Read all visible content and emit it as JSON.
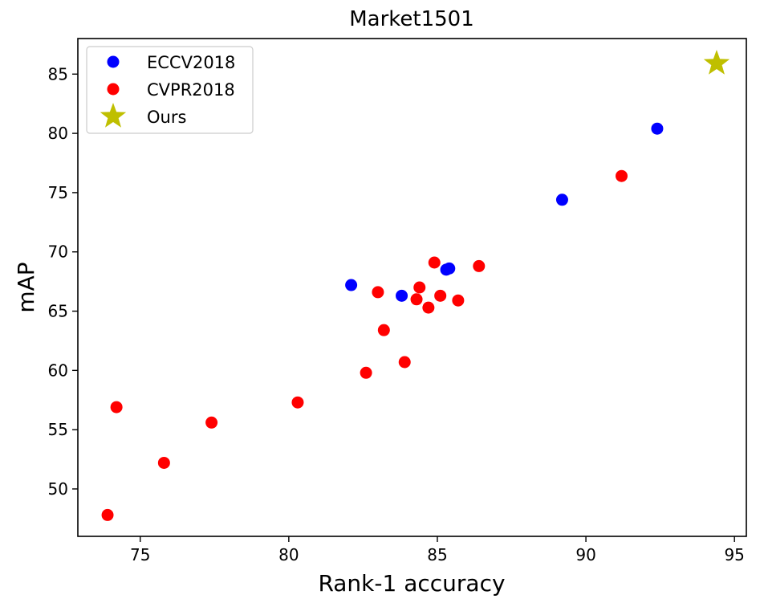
{
  "chart_data": {
    "type": "scatter",
    "title": "Market1501",
    "xlabel": "Rank-1 accuracy",
    "ylabel": "mAP",
    "xlim": [
      72.9,
      95.4
    ],
    "ylim": [
      46.0,
      88.0
    ],
    "x_ticks": [
      75,
      80,
      85,
      90,
      95
    ],
    "y_ticks": [
      50,
      55,
      60,
      65,
      70,
      75,
      80,
      85
    ],
    "grid": false,
    "legend_position": "top-left",
    "series": [
      {
        "name": "ECCV2018",
        "color": "#0000ff",
        "marker": "circle",
        "points": [
          {
            "x": 82.1,
            "y": 67.2
          },
          {
            "x": 83.8,
            "y": 66.3
          },
          {
            "x": 85.3,
            "y": 68.5
          },
          {
            "x": 85.4,
            "y": 68.6
          },
          {
            "x": 89.2,
            "y": 74.4
          },
          {
            "x": 92.4,
            "y": 80.4
          }
        ]
      },
      {
        "name": "CVPR2018",
        "color": "#ff0000",
        "marker": "circle",
        "points": [
          {
            "x": 73.9,
            "y": 47.8
          },
          {
            "x": 74.2,
            "y": 56.9
          },
          {
            "x": 75.8,
            "y": 52.2
          },
          {
            "x": 77.4,
            "y": 55.6
          },
          {
            "x": 80.3,
            "y": 57.3
          },
          {
            "x": 82.6,
            "y": 59.8
          },
          {
            "x": 83.0,
            "y": 66.6
          },
          {
            "x": 83.2,
            "y": 63.4
          },
          {
            "x": 83.9,
            "y": 60.7
          },
          {
            "x": 84.3,
            "y": 66.0
          },
          {
            "x": 84.4,
            "y": 67.0
          },
          {
            "x": 84.7,
            "y": 65.3
          },
          {
            "x": 84.9,
            "y": 69.1
          },
          {
            "x": 85.1,
            "y": 66.3
          },
          {
            "x": 85.7,
            "y": 65.9
          },
          {
            "x": 86.4,
            "y": 68.8
          },
          {
            "x": 91.2,
            "y": 76.4
          }
        ]
      },
      {
        "name": "Ours",
        "color": "#bfbf00",
        "marker": "star",
        "points": [
          {
            "x": 94.4,
            "y": 85.9
          }
        ]
      }
    ]
  }
}
